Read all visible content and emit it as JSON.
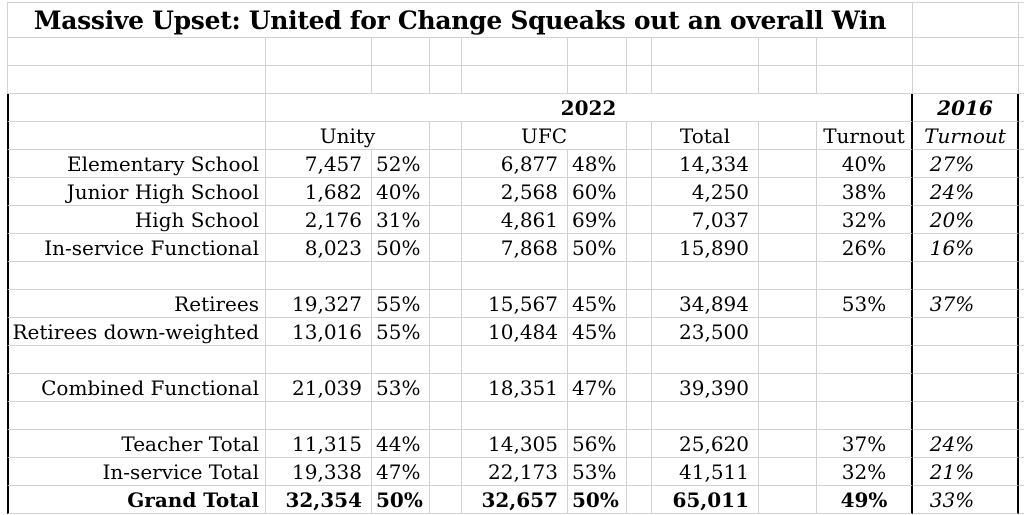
{
  "title": "Massive Upset: United for Change Squeaks out an overall Win",
  "colors": {
    "background": "#ffffff",
    "grid": "#d2d2d2",
    "border": "#000000",
    "text": "#000000"
  },
  "table": {
    "year_headers": {
      "y2022": "2022",
      "y2016": "2016"
    },
    "column_headers": {
      "unity": "Unity",
      "ufc": "UFC",
      "total": "Total",
      "turnout": "Turnout",
      "turnout_2016": "Turnout"
    },
    "rows": [
      {
        "label": "Elementary School",
        "unity": "7,457",
        "unity_pct": "52%",
        "ufc": "6,877",
        "ufc_pct": "48%",
        "total": "14,334",
        "turnout": "40%",
        "turnout_2016": "27%"
      },
      {
        "label": "Junior High School",
        "unity": "1,682",
        "unity_pct": "40%",
        "ufc": "2,568",
        "ufc_pct": "60%",
        "total": "4,250",
        "turnout": "38%",
        "turnout_2016": "24%"
      },
      {
        "label": "High School",
        "unity": "2,176",
        "unity_pct": "31%",
        "ufc": "4,861",
        "ufc_pct": "69%",
        "total": "7,037",
        "turnout": "32%",
        "turnout_2016": "20%"
      },
      {
        "label": "In-service Functional",
        "unity": "8,023",
        "unity_pct": "50%",
        "ufc": "7,868",
        "ufc_pct": "50%",
        "total": "15,890",
        "turnout": "26%",
        "turnout_2016": "16%"
      },
      {
        "label": "",
        "unity": "",
        "unity_pct": "",
        "ufc": "",
        "ufc_pct": "",
        "total": "",
        "turnout": "",
        "turnout_2016": ""
      },
      {
        "label": "Retirees",
        "unity": "19,327",
        "unity_pct": "55%",
        "ufc": "15,567",
        "ufc_pct": "45%",
        "total": "34,894",
        "turnout": "53%",
        "turnout_2016": "37%"
      },
      {
        "label": "Retirees down-weighted",
        "unity": "13,016",
        "unity_pct": "55%",
        "ufc": "10,484",
        "ufc_pct": "45%",
        "total": "23,500",
        "turnout": "",
        "turnout_2016": ""
      },
      {
        "label": "",
        "unity": "",
        "unity_pct": "",
        "ufc": "",
        "ufc_pct": "",
        "total": "",
        "turnout": "",
        "turnout_2016": ""
      },
      {
        "label": "Combined Functional",
        "unity": "21,039",
        "unity_pct": "53%",
        "ufc": "18,351",
        "ufc_pct": "47%",
        "total": "39,390",
        "turnout": "",
        "turnout_2016": ""
      },
      {
        "label": "",
        "unity": "",
        "unity_pct": "",
        "ufc": "",
        "ufc_pct": "",
        "total": "",
        "turnout": "",
        "turnout_2016": ""
      },
      {
        "label": "Teacher Total",
        "unity": "11,315",
        "unity_pct": "44%",
        "ufc": "14,305",
        "ufc_pct": "56%",
        "total": "25,620",
        "turnout": "37%",
        "turnout_2016": "24%"
      },
      {
        "label": "In-service Total",
        "unity": "19,338",
        "unity_pct": "47%",
        "ufc": "22,173",
        "ufc_pct": "53%",
        "total": "41,511",
        "turnout": "32%",
        "turnout_2016": "21%"
      },
      {
        "label": "Grand Total",
        "unity": "32,354",
        "unity_pct": "50%",
        "ufc": "32,657",
        "ufc_pct": "50%",
        "total": "65,011",
        "turnout": "49%",
        "turnout_2016": "33%",
        "bold": true
      }
    ]
  }
}
